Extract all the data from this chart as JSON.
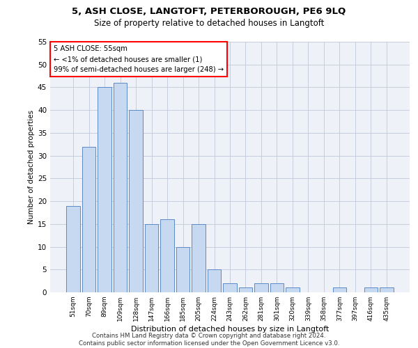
{
  "title1": "5, ASH CLOSE, LANGTOFT, PETERBOROUGH, PE6 9LQ",
  "title2": "Size of property relative to detached houses in Langtoft",
  "xlabel": "Distribution of detached houses by size in Langtoft",
  "ylabel": "Number of detached properties",
  "categories": [
    "51sqm",
    "70sqm",
    "89sqm",
    "109sqm",
    "128sqm",
    "147sqm",
    "166sqm",
    "185sqm",
    "205sqm",
    "224sqm",
    "243sqm",
    "262sqm",
    "281sqm",
    "301sqm",
    "320sqm",
    "339sqm",
    "358sqm",
    "377sqm",
    "397sqm",
    "416sqm",
    "435sqm"
  ],
  "values": [
    19,
    32,
    45,
    46,
    40,
    15,
    16,
    10,
    15,
    5,
    2,
    1,
    2,
    2,
    1,
    0,
    0,
    1,
    0,
    1,
    1
  ],
  "bar_color": "#c6d9f0",
  "bar_edge_color": "#5a8ac6",
  "annotation_text": "5 ASH CLOSE: 55sqm\n← <1% of detached houses are smaller (1)\n99% of semi-detached houses are larger (248) →",
  "annotation_box_color": "white",
  "annotation_box_edge_color": "red",
  "footnote": "Contains HM Land Registry data © Crown copyright and database right 2024.\nContains public sector information licensed under the Open Government Licence v3.0.",
  "ylim": [
    0,
    55
  ],
  "yticks": [
    0,
    5,
    10,
    15,
    20,
    25,
    30,
    35,
    40,
    45,
    50,
    55
  ],
  "grid_color": "#c0c8d8",
  "bg_color": "#eef2f8"
}
